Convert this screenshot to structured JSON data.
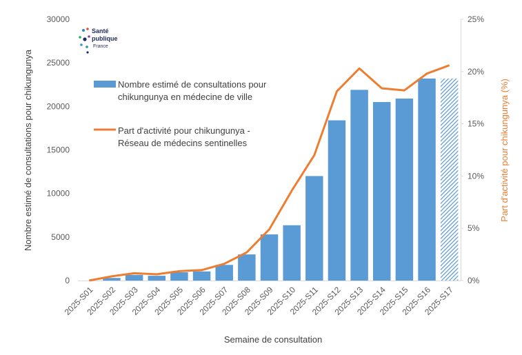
{
  "logo": {
    "line1": "Santé",
    "line2": "publique",
    "line3": "France"
  },
  "colors": {
    "bar": "#5b9bd5",
    "line": "#ed7d31",
    "axis": "#d9d9d9",
    "text": "#404040"
  },
  "chart_data": {
    "type": "bar",
    "categories": [
      "2025-S01",
      "2025-S02",
      "2025-S03",
      "2025-S04",
      "2025-S05",
      "2025-S06",
      "2025-S07",
      "2025-S08",
      "2025-S09",
      "2025-S10",
      "2025-S11",
      "2025-S12",
      "2025-S13",
      "2025-S14",
      "2025-S15",
      "2025-S16",
      "2025-S17"
    ],
    "xlabel": "Semaine de consultation",
    "ylabel": "Nombre estimé de consultations pour chikungunya",
    "y2label": "Part d'activité pour chikungunya (%)",
    "ylim": [
      0,
      30000
    ],
    "y2lim": [
      0,
      25
    ],
    "yticks": [
      "0",
      "5000",
      "10000",
      "15000",
      "20000",
      "25000",
      "30000"
    ],
    "y2ticks": [
      "0%",
      "5%",
      "10%",
      "15%",
      "20%",
      "25%"
    ],
    "series": [
      {
        "name": "Nombre estimé de consultations pour chikungunya en médecine de ville",
        "name_lines": [
          "Nombre estimé de consultations pour",
          "chikungunya en médecine de ville"
        ],
        "type": "bar",
        "axis": "left",
        "values": [
          0,
          300,
          650,
          550,
          950,
          1050,
          1800,
          3000,
          5300,
          6350,
          12000,
          18400,
          21900,
          20500,
          20900,
          23200,
          23200
        ],
        "hatched_last": true
      },
      {
        "name": "Part d'activité pour chikungunya - Réseau de médecins sentinelles",
        "name_lines": [
          "Part d'activité pour chikungunya -",
          "Réseau de médecins sentinelles"
        ],
        "type": "line",
        "axis": "right",
        "values": [
          0.0,
          0.4,
          0.7,
          0.6,
          0.9,
          1.0,
          1.6,
          2.7,
          4.9,
          8.6,
          12.0,
          18.1,
          20.3,
          18.4,
          18.2,
          19.8,
          20.6
        ]
      }
    ],
    "legend": "inside-top-left",
    "grid": false
  }
}
